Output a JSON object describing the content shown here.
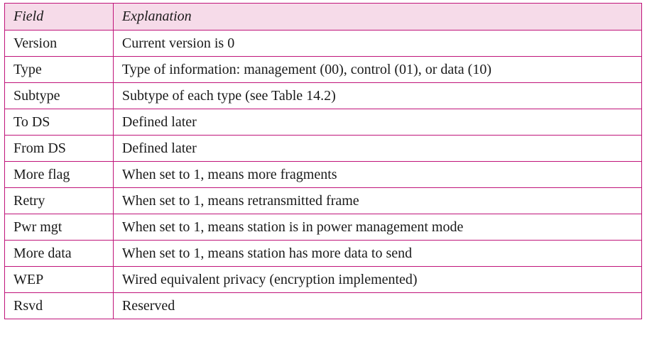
{
  "table": {
    "headers": [
      "Field",
      "Explanation"
    ],
    "rows": [
      [
        "Version",
        "Current version is 0"
      ],
      [
        "Type",
        "Type of information: management (00), control (01), or data (10)"
      ],
      [
        "Subtype",
        "Subtype of each type (see Table 14.2)"
      ],
      [
        "To DS",
        "Defined later"
      ],
      [
        "From DS",
        "Defined later"
      ],
      [
        "More flag",
        "When set to 1, means more fragments"
      ],
      [
        "Retry",
        "When set to 1, means retransmitted frame"
      ],
      [
        "Pwr mgt",
        "When set to 1, means station is in power management mode"
      ],
      [
        "More data",
        "When set to 1, means station has more data to send"
      ],
      [
        "WEP",
        "Wired equivalent privacy (encryption implemented)"
      ],
      [
        "Rsvd",
        "Reserved"
      ]
    ]
  },
  "colors": {
    "border": "#c0147a",
    "header_background": "#f6dbe9"
  }
}
